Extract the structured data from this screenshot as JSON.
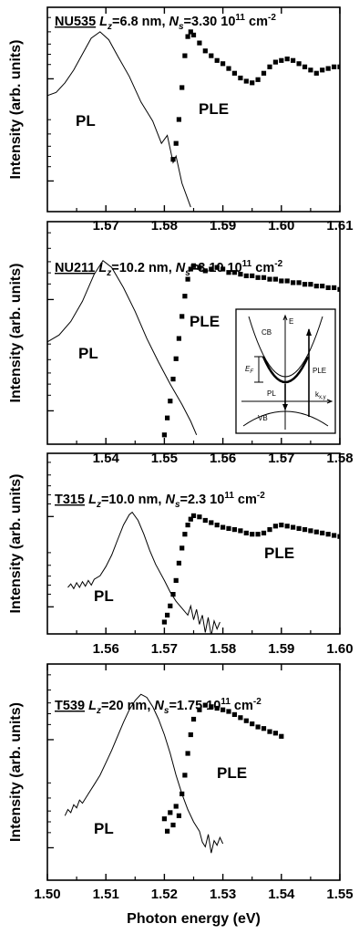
{
  "chart_data": [
    {
      "type": "line",
      "sample": "NU535",
      "Lz": "6.8 nm",
      "Ns": "3.30 10",
      "ns_exp": "11",
      "ns_unit": " cm",
      "unit_exp": "-2",
      "ylabel": "Intensity (arb. units)",
      "xlim": [
        1.56,
        1.61
      ],
      "xticks": [
        "1.57",
        "1.58",
        "1.59",
        "1.60",
        "1.61"
      ],
      "annotations": [
        "PL",
        "PLE"
      ],
      "series": [
        {
          "name": "PL",
          "x": [
            1.56,
            1.5615,
            1.563,
            1.5645,
            1.566,
            1.5675,
            1.569,
            1.5705,
            1.572,
            1.574,
            1.576,
            1.578,
            1.5795,
            1.5805,
            1.5815,
            1.582,
            1.583,
            1.5845
          ],
          "y": [
            0.6,
            0.62,
            0.68,
            0.76,
            0.86,
            0.96,
            1.0,
            0.95,
            0.85,
            0.72,
            0.56,
            0.44,
            0.3,
            0.35,
            0.18,
            0.22,
            0.05,
            -0.1
          ]
        },
        {
          "name": "PLE",
          "x": [
            1.5805,
            1.581,
            1.5815,
            1.582,
            1.5825,
            1.583,
            1.5835,
            1.584,
            1.5845,
            1.585,
            1.586,
            1.587,
            1.588,
            1.589,
            1.59,
            1.591,
            1.592,
            1.593,
            1.594,
            1.595,
            1.596,
            1.597,
            1.598,
            1.599,
            1.6,
            1.601,
            1.602,
            1.603,
            1.604,
            1.605,
            1.606,
            1.607,
            1.608,
            1.609,
            1.61
          ],
          "y": [
            -0.2,
            -0.15,
            0.2,
            0.3,
            0.45,
            0.65,
            0.85,
            0.97,
            1.0,
            0.98,
            0.93,
            0.88,
            0.85,
            0.82,
            0.8,
            0.77,
            0.74,
            0.71,
            0.69,
            0.68,
            0.7,
            0.74,
            0.78,
            0.81,
            0.82,
            0.83,
            0.82,
            0.8,
            0.78,
            0.76,
            0.74,
            0.76,
            0.77,
            0.78,
            0.78
          ]
        }
      ]
    },
    {
      "type": "line",
      "sample": "NU211",
      "Lz": "10.2 nm",
      "Ns": "3.10 10",
      "ns_exp": "11",
      "ns_unit": " cm",
      "unit_exp": "-2",
      "ylabel": "Intensity (arb. units)",
      "xlim": [
        1.53,
        1.58
      ],
      "xticks": [
        "1.54",
        "1.55",
        "1.56",
        "1.57",
        "1.58"
      ],
      "annotations": [
        "PL",
        "PLE"
      ],
      "inset_labels": [
        "E",
        "CB",
        "VB",
        "PL",
        "PLE",
        "F",
        "k",
        "x,y"
      ],
      "series": [
        {
          "name": "PL",
          "x": [
            1.53,
            1.532,
            1.534,
            1.536,
            1.538,
            1.5395,
            1.541,
            1.543,
            1.545,
            1.547,
            1.549,
            1.551,
            1.553,
            1.5545,
            1.5555
          ],
          "y": [
            0.5,
            0.54,
            0.62,
            0.74,
            0.9,
            0.98,
            0.94,
            0.82,
            0.68,
            0.52,
            0.38,
            0.25,
            0.13,
            0.03,
            -0.05
          ]
        },
        {
          "name": "PLE",
          "x": [
            1.55,
            1.5505,
            1.551,
            1.5515,
            1.552,
            1.5525,
            1.553,
            1.5535,
            1.554,
            1.5545,
            1.555,
            1.556,
            1.557,
            1.558,
            1.559,
            1.56,
            1.561,
            1.562,
            1.563,
            1.564,
            1.565,
            1.566,
            1.567,
            1.568,
            1.569,
            1.57,
            1.571,
            1.572,
            1.573,
            1.574,
            1.575,
            1.576,
            1.577,
            1.578,
            1.579,
            1.58
          ],
          "y": [
            -0.05,
            0.05,
            0.15,
            0.28,
            0.4,
            0.52,
            0.65,
            0.77,
            0.87,
            0.93,
            0.95,
            0.94,
            0.92,
            0.93,
            0.94,
            0.93,
            0.91,
            0.91,
            0.9,
            0.89,
            0.89,
            0.88,
            0.88,
            0.87,
            0.87,
            0.86,
            0.86,
            0.85,
            0.85,
            0.84,
            0.84,
            0.83,
            0.83,
            0.82,
            0.82,
            0.81
          ]
        }
      ]
    },
    {
      "type": "line",
      "sample": "T315",
      "Lz": "10.0 nm",
      "Ns": "2.3 10",
      "ns_exp": "11",
      "ns_unit": " cm",
      "unit_exp": "-2",
      "ylabel": "Intensity (arb. units)",
      "xlim": [
        1.55,
        1.6
      ],
      "xticks": [
        "1.56",
        "1.57",
        "1.58",
        "1.59",
        "1.60"
      ],
      "annotations": [
        "PL",
        "PLE"
      ],
      "series": [
        {
          "name": "PL",
          "x": [
            1.5535,
            1.554,
            1.5545,
            1.555,
            1.5555,
            1.556,
            1.5565,
            1.557,
            1.5575,
            1.558,
            1.559,
            1.56,
            1.561,
            1.562,
            1.563,
            1.564,
            1.5645,
            1.5655,
            1.5665,
            1.5675,
            1.5685,
            1.57,
            1.571,
            1.572,
            1.573,
            1.574,
            1.5745,
            1.575,
            1.5755,
            1.576,
            1.5765,
            1.577,
            1.5775,
            1.578,
            1.5785,
            1.579,
            1.5795
          ],
          "y": [
            0.34,
            0.37,
            0.33,
            0.38,
            0.34,
            0.39,
            0.35,
            0.4,
            0.36,
            0.41,
            0.44,
            0.52,
            0.62,
            0.75,
            0.88,
            0.97,
            0.99,
            0.92,
            0.8,
            0.66,
            0.54,
            0.4,
            0.3,
            0.22,
            0.16,
            0.1,
            0.18,
            0.06,
            0.15,
            0.02,
            0.1,
            -0.05,
            0.08,
            -0.08,
            0.05,
            -0.02,
            0.04
          ]
        },
        {
          "name": "PLE",
          "x": [
            1.57,
            1.5705,
            1.571,
            1.5715,
            1.572,
            1.5725,
            1.573,
            1.5735,
            1.574,
            1.5745,
            1.575,
            1.576,
            1.577,
            1.578,
            1.579,
            1.58,
            1.581,
            1.582,
            1.583,
            1.584,
            1.585,
            1.586,
            1.587,
            1.588,
            1.589,
            1.59,
            1.591,
            1.592,
            1.593,
            1.594,
            1.595,
            1.596,
            1.597,
            1.598,
            1.599,
            1.6
          ],
          "y": [
            0.04,
            0.1,
            0.18,
            0.28,
            0.4,
            0.55,
            0.68,
            0.8,
            0.88,
            0.93,
            0.96,
            0.95,
            0.92,
            0.9,
            0.88,
            0.86,
            0.85,
            0.84,
            0.83,
            0.81,
            0.8,
            0.8,
            0.81,
            0.84,
            0.87,
            0.88,
            0.87,
            0.86,
            0.85,
            0.84,
            0.83,
            0.82,
            0.81,
            0.8,
            0.79,
            0.78
          ]
        }
      ]
    },
    {
      "type": "line",
      "sample": "T539",
      "Lz": "20 nm",
      "Ns": "1.75 10",
      "ns_exp": "11",
      "ns_unit": " cm",
      "unit_exp": "-2",
      "ylabel": "Intensity (arb. units)",
      "xlabel": "Photon energy (eV)",
      "xlim": [
        1.5,
        1.55
      ],
      "xticks": [
        "1.50",
        "1.51",
        "1.52",
        "1.53",
        "1.54",
        "1.55"
      ],
      "annotations": [
        "PL",
        "PLE"
      ],
      "series": [
        {
          "name": "PL",
          "x": [
            1.503,
            1.5035,
            1.504,
            1.5045,
            1.505,
            1.5055,
            1.506,
            1.507,
            1.508,
            1.509,
            1.51,
            1.511,
            1.512,
            1.513,
            1.514,
            1.515,
            1.516,
            1.517,
            1.518,
            1.519,
            1.52,
            1.521,
            1.522,
            1.523,
            1.524,
            1.525,
            1.526,
            1.5265,
            1.527,
            1.5275,
            1.528,
            1.5285,
            1.529,
            1.5295,
            1.53
          ],
          "y": [
            0.22,
            0.26,
            0.24,
            0.29,
            0.27,
            0.32,
            0.3,
            0.36,
            0.42,
            0.48,
            0.56,
            0.64,
            0.73,
            0.82,
            0.9,
            0.96,
            1.0,
            0.98,
            0.92,
            0.84,
            0.74,
            0.62,
            0.48,
            0.36,
            0.26,
            0.18,
            0.12,
            0.05,
            0.02,
            0.1,
            -0.02,
            0.06,
            0.03,
            0.08,
            0.04
          ]
        },
        {
          "name": "PLE",
          "x": [
            1.52,
            1.5205,
            1.521,
            1.5215,
            1.522,
            1.5225,
            1.523,
            1.5235,
            1.524,
            1.5245,
            1.525,
            1.526,
            1.527,
            1.528,
            1.529,
            1.53,
            1.531,
            1.532,
            1.533,
            1.534,
            1.535,
            1.536,
            1.537,
            1.538,
            1.539,
            1.54
          ],
          "y": [
            0.2,
            0.12,
            0.24,
            0.16,
            0.28,
            0.22,
            0.36,
            0.48,
            0.62,
            0.74,
            0.84,
            0.9,
            0.93,
            0.92,
            0.91,
            0.9,
            0.89,
            0.87,
            0.85,
            0.83,
            0.81,
            0.79,
            0.78,
            0.76,
            0.75,
            0.73
          ]
        }
      ]
    }
  ]
}
